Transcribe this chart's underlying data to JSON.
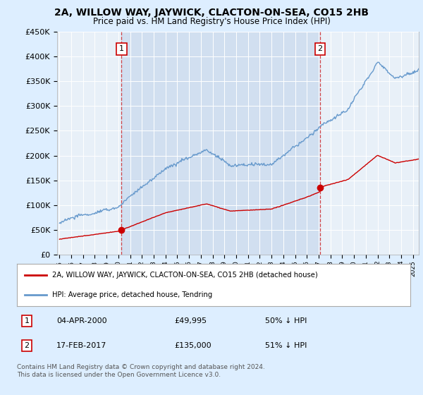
{
  "title": "2A, WILLOW WAY, JAYWICK, CLACTON-ON-SEA, CO15 2HB",
  "subtitle": "Price paid vs. HM Land Registry's House Price Index (HPI)",
  "legend_line1": "2A, WILLOW WAY, JAYWICK, CLACTON-ON-SEA, CO15 2HB (detached house)",
  "legend_line2": "HPI: Average price, detached house, Tendring",
  "annotation1_date": "04-APR-2000",
  "annotation1_price": "£49,995",
  "annotation1_hpi": "50% ↓ HPI",
  "annotation2_date": "17-FEB-2017",
  "annotation2_price": "£135,000",
  "annotation2_hpi": "51% ↓ HPI",
  "footnote": "Contains HM Land Registry data © Crown copyright and database right 2024.\nThis data is licensed under the Open Government Licence v3.0.",
  "sale1_year": 2000.27,
  "sale1_price": 49995,
  "sale2_year": 2017.12,
  "sale2_price": 135000,
  "hpi_color": "#6699cc",
  "sale_color": "#cc0000",
  "bg_color": "#ddeeff",
  "plot_bg": "#e8f0f8",
  "shade_color": "#c8d8ee",
  "ylim_min": 0,
  "ylim_max": 450000,
  "xlim_min": 1994.8,
  "xlim_max": 2025.5
}
